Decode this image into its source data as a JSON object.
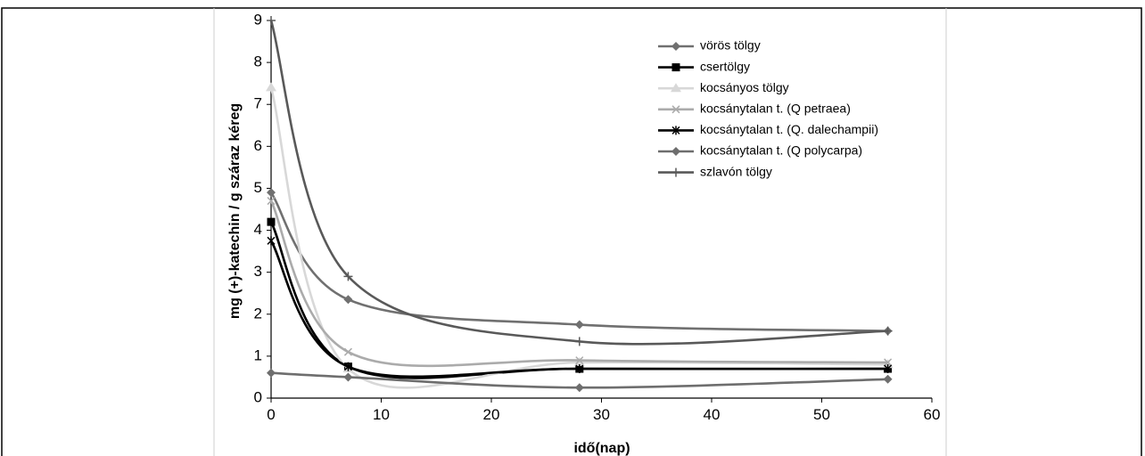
{
  "chart_data": {
    "type": "line",
    "title": "",
    "xlabel": "idő(nap)",
    "ylabel": "mg (+)-katechin / g száraz kéreg",
    "xlim": [
      0,
      60
    ],
    "ylim": [
      0,
      9
    ],
    "xticks": [
      "0",
      "10",
      "20",
      "30",
      "40",
      "50",
      "60"
    ],
    "yticks": [
      "0",
      "1",
      "2",
      "3",
      "4",
      "5",
      "6",
      "7",
      "8",
      "9"
    ],
    "grid": false,
    "legend_position": "top-right",
    "x": [
      0,
      7,
      28,
      56
    ],
    "series": [
      {
        "name": "vörös tölgy",
        "values": [
          4.9,
          2.35,
          1.75,
          1.6
        ],
        "color": "#707070",
        "marker": "diamond"
      },
      {
        "name": "csertölgy",
        "values": [
          4.2,
          0.75,
          0.7,
          0.7
        ],
        "color": "#000000",
        "marker": "square"
      },
      {
        "name": "kocsányos tölgy",
        "values": [
          7.4,
          0.7,
          0.85,
          0.8
        ],
        "color": "#d8d8d8",
        "marker": "triangle"
      },
      {
        "name": "kocsánytalan t. (Q petraea)",
        "values": [
          4.7,
          1.1,
          0.9,
          0.85
        ],
        "color": "#ababab",
        "marker": "x"
      },
      {
        "name": "kocsánytalan t. (Q. dalechampii)",
        "values": [
          3.75,
          0.75,
          0.7,
          0.7
        ],
        "color": "#000000",
        "marker": "star"
      },
      {
        "name": "kocsánytalan t. (Q polycarpa)",
        "values": [
          0.6,
          0.5,
          0.25,
          0.45
        ],
        "color": "#6e6e6e",
        "marker": "diamond"
      },
      {
        "name": "szlavón tölgy",
        "values": [
          9.0,
          2.9,
          1.35,
          1.6
        ],
        "color": "#595959",
        "marker": "plus"
      }
    ]
  }
}
